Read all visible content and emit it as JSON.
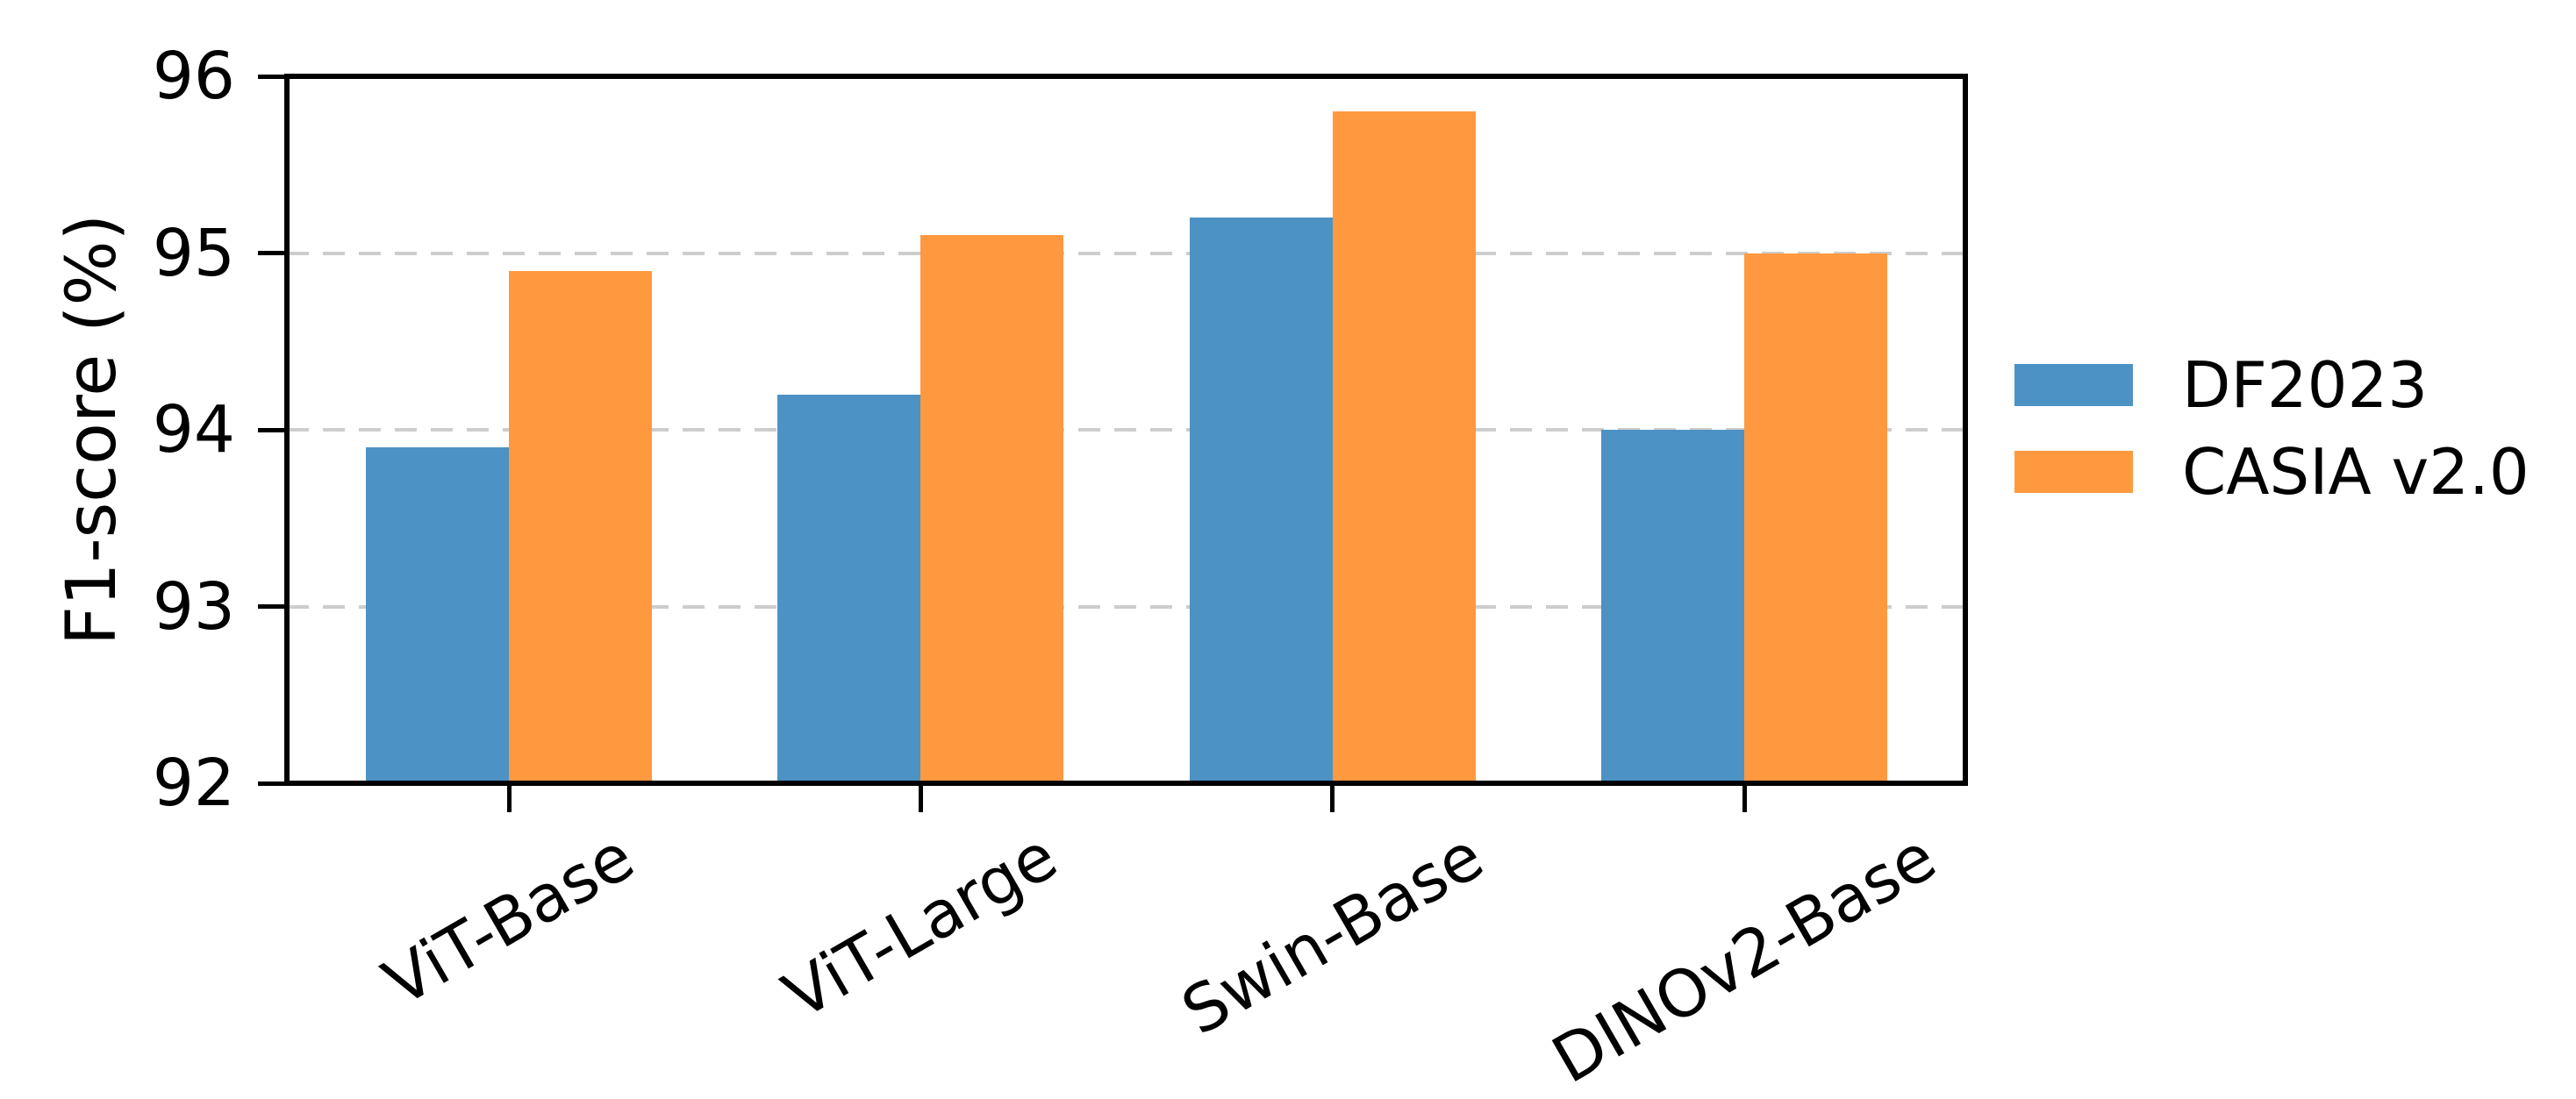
{
  "chart_data": {
    "type": "bar",
    "title": "",
    "categories": [
      "ViT-Base",
      "ViT-Large",
      "Swin-Base",
      "DINOv2-Base"
    ],
    "series": [
      {
        "name": "DF2023",
        "color": "#4C92C4",
        "values": [
          93.9,
          94.2,
          95.2,
          94.0
        ]
      },
      {
        "name": "CASIA v2.0",
        "color": "#FF9940",
        "values": [
          94.9,
          95.1,
          95.8,
          95.0
        ]
      }
    ],
    "xlabel": "",
    "ylabel": "F1-score (%)",
    "ylim": [
      92,
      96
    ],
    "yticks": [
      92,
      93,
      94,
      95,
      96
    ],
    "gridlines": {
      "values": [
        93,
        94,
        95
      ],
      "style": "dashed",
      "color": "#cdcdcd"
    },
    "xtick_rotation_deg": 30,
    "legend": {
      "position": "center-right",
      "frame": false
    },
    "axis_color": "#000000",
    "background_color": "#ffffff"
  }
}
